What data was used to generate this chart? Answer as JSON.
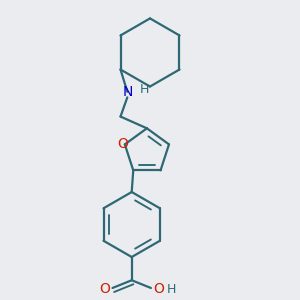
{
  "bg_color": "#eaecef",
  "line_color": "#2e6875",
  "N_color": "#0000cc",
  "O_color": "#cc2200",
  "bond_lw": 1.6,
  "figsize": [
    3.0,
    3.0
  ],
  "dpi": 100,
  "xlim": [
    0.15,
    0.85
  ],
  "ylim": [
    0.02,
    0.98
  ]
}
